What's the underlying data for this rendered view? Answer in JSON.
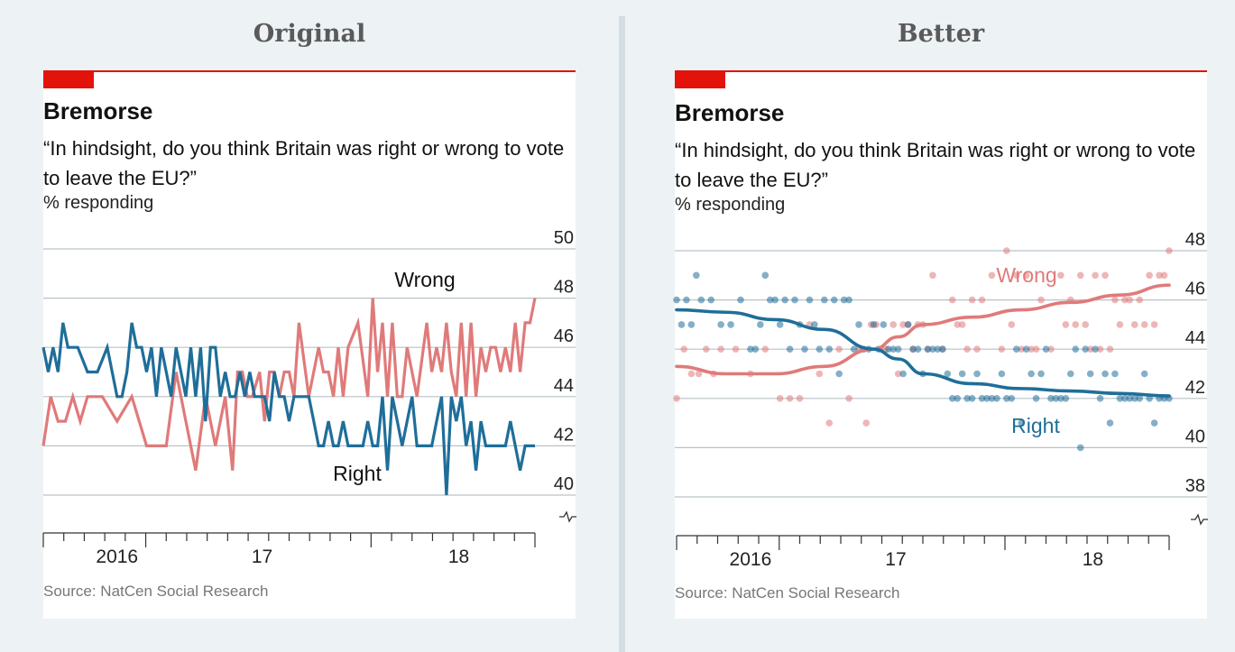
{
  "headings": {
    "left": "Original",
    "right": "Better"
  },
  "chart_data": [
    {
      "type": "line",
      "title": "Bremorse",
      "subtitle": "“In hindsight, do you think Britain was right or wrong to vote to leave the EU?”",
      "ylabel": "% responding",
      "ylim": [
        39,
        50
      ],
      "yticks": [
        40,
        42,
        44,
        46,
        48,
        50
      ],
      "y_axis_break": true,
      "x_range": [
        0,
        100
      ],
      "x_ticks": [
        {
          "label": "2016",
          "x": 15
        },
        {
          "label": "17",
          "x": 44.5
        },
        {
          "label": "18",
          "x": 84.5
        }
      ],
      "series": [
        {
          "name": "Wrong",
          "color": "#e07a7a",
          "x": [
            0,
            1.5,
            3,
            4.5,
            6,
            7.5,
            9,
            12,
            15,
            18,
            21,
            23,
            25,
            27,
            29,
            31,
            33,
            35,
            37,
            38.5,
            39.5,
            40.5,
            41.5,
            42.5,
            44,
            45,
            46,
            47,
            48,
            49,
            50,
            51,
            52,
            54,
            56,
            57,
            58,
            59,
            60,
            61,
            62,
            64,
            66,
            67,
            68,
            69,
            70,
            71,
            72,
            73,
            74,
            76,
            78,
            79,
            80,
            81,
            82,
            83,
            84,
            85,
            86,
            87,
            88,
            89,
            90,
            91,
            92,
            93,
            94,
            95,
            96,
            97,
            98,
            99,
            100
          ],
          "y": [
            42,
            44,
            43,
            43,
            44,
            43,
            44,
            44,
            43,
            44,
            42,
            42,
            42,
            45,
            43,
            41,
            44,
            42,
            44,
            41,
            45,
            45,
            44,
            44,
            45,
            43,
            45,
            45,
            44,
            45,
            45,
            44,
            47,
            44,
            46,
            45,
            45,
            44,
            46,
            44,
            46,
            47,
            44,
            48,
            45,
            47,
            44,
            47,
            44,
            44,
            46,
            44,
            47,
            45,
            46,
            45,
            47,
            45,
            44,
            47,
            44,
            47,
            44,
            46,
            45,
            46,
            46,
            45,
            46,
            45,
            47,
            45,
            47,
            47,
            48
          ]
        },
        {
          "name": "Right",
          "color": "#1f6e99",
          "x": [
            0,
            1,
            2,
            3,
            4,
            5,
            7,
            9,
            11,
            13,
            15,
            16,
            17,
            18,
            19,
            20,
            21,
            22,
            23,
            24,
            25,
            26,
            27,
            28,
            29,
            30,
            31,
            32,
            33,
            34,
            35,
            36,
            37,
            38,
            39,
            40,
            41,
            42,
            43,
            44,
            45,
            46,
            47,
            48,
            49,
            50,
            51,
            52,
            53,
            54,
            55,
            56,
            57,
            58,
            59,
            60,
            61,
            62,
            63,
            64,
            65,
            66,
            67,
            68,
            69,
            70,
            71,
            72,
            73,
            74,
            75,
            76,
            77,
            78,
            79,
            80,
            81,
            82,
            83,
            84,
            85,
            86,
            87,
            88,
            89,
            90,
            91,
            92,
            93,
            94,
            95,
            96,
            97,
            98,
            99,
            100
          ],
          "y": [
            46,
            45,
            46,
            45,
            47,
            46,
            46,
            45,
            45,
            46,
            44,
            44,
            45,
            47,
            46,
            46,
            45,
            46,
            44,
            46,
            45,
            44,
            46,
            45,
            44,
            46,
            44,
            46,
            43,
            46,
            46,
            44,
            45,
            44,
            44,
            45,
            44,
            45,
            44,
            44,
            44,
            43,
            45,
            44,
            44,
            43,
            44,
            44,
            44,
            44,
            43,
            42,
            42,
            43,
            42,
            42,
            43,
            42,
            42,
            42,
            42,
            43,
            42,
            42,
            44,
            41,
            44,
            43,
            42,
            43,
            44,
            42,
            42,
            42,
            42,
            43,
            44,
            40,
            44,
            43,
            44,
            42,
            43,
            41,
            43,
            42,
            42,
            42,
            42,
            42,
            43,
            42,
            41,
            42,
            42,
            42
          ]
        }
      ],
      "annotations": [
        "Wrong",
        "Right"
      ],
      "source": "Source: NatCen Social Research"
    },
    {
      "type": "scatter",
      "title": "Bremorse",
      "subtitle": "“In hindsight, do you think Britain was right or wrong to vote to leave the EU?”",
      "ylabel": "% responding",
      "ylim": [
        37,
        48
      ],
      "yticks": [
        38,
        40,
        42,
        44,
        46,
        48
      ],
      "y_axis_break": true,
      "x_range": [
        0,
        100
      ],
      "x_ticks": [
        {
          "label": "2016",
          "x": 15
        },
        {
          "label": "17",
          "x": 44.5
        },
        {
          "label": "18",
          "x": 84.5
        }
      ],
      "series": [
        {
          "name": "Wrong",
          "color": "#e07a7a",
          "opacity": 0.55,
          "x": [
            0,
            1.5,
            3,
            4.5,
            6,
            7.5,
            9,
            12,
            15,
            18,
            21,
            23,
            25,
            27,
            29,
            31,
            33,
            35,
            37,
            38.5,
            39.5,
            40.5,
            41.5,
            42.5,
            44,
            45,
            46,
            47,
            48,
            49,
            50,
            51,
            52,
            54,
            56,
            57,
            58,
            59,
            60,
            61,
            62,
            64,
            66,
            67,
            68,
            69,
            70,
            71,
            72,
            73,
            74,
            76,
            78,
            79,
            80,
            81,
            82,
            83,
            84,
            85,
            86,
            87,
            88,
            89,
            90,
            91,
            92,
            93,
            94,
            95,
            96,
            97,
            98,
            99,
            100
          ],
          "y": [
            42,
            44,
            43,
            43,
            44,
            43,
            44,
            44,
            43,
            44,
            42,
            42,
            42,
            45,
            43,
            41,
            44,
            42,
            44,
            41,
            45,
            45,
            44,
            44,
            45,
            43,
            45,
            45,
            44,
            45,
            45,
            44,
            47,
            44,
            46,
            45,
            45,
            44,
            46,
            44,
            46,
            47,
            44,
            48,
            45,
            47,
            44,
            47,
            44,
            44,
            46,
            44,
            47,
            45,
            46,
            45,
            47,
            45,
            44,
            47,
            44,
            47,
            44,
            46,
            45,
            46,
            46,
            45,
            46,
            45,
            47,
            45,
            47,
            47,
            48
          ],
          "trend_x": [
            0,
            10,
            20,
            30,
            40,
            45,
            50,
            60,
            70,
            80,
            90,
            100
          ],
          "trend_y": [
            43.3,
            43.0,
            43.0,
            43.3,
            44.0,
            44.5,
            45.0,
            45.3,
            45.6,
            45.9,
            46.2,
            46.6
          ]
        },
        {
          "name": "Right",
          "color": "#1f6e99",
          "opacity": 0.55,
          "x": [
            0,
            1,
            2,
            3,
            4,
            5,
            7,
            9,
            11,
            13,
            15,
            16,
            17,
            18,
            19,
            20,
            21,
            22,
            23,
            24,
            25,
            26,
            27,
            28,
            29,
            30,
            31,
            32,
            33,
            34,
            35,
            36,
            37,
            38,
            39,
            40,
            41,
            42,
            43,
            44,
            45,
            46,
            47,
            48,
            49,
            50,
            51,
            52,
            53,
            54,
            55,
            56,
            57,
            58,
            59,
            60,
            61,
            62,
            63,
            64,
            65,
            66,
            67,
            68,
            69,
            70,
            71,
            72,
            73,
            74,
            75,
            76,
            77,
            78,
            79,
            80,
            81,
            82,
            83,
            84,
            85,
            86,
            87,
            88,
            89,
            90,
            91,
            92,
            93,
            94,
            95,
            96,
            97,
            98,
            99,
            100
          ],
          "y": [
            46,
            45,
            46,
            45,
            47,
            46,
            46,
            45,
            45,
            46,
            44,
            44,
            45,
            47,
            46,
            46,
            45,
            46,
            44,
            46,
            45,
            44,
            46,
            45,
            44,
            46,
            44,
            46,
            43,
            46,
            46,
            44,
            45,
            44,
            44,
            45,
            44,
            45,
            44,
            44,
            44,
            43,
            45,
            44,
            44,
            43,
            44,
            44,
            44,
            44,
            43,
            42,
            42,
            43,
            42,
            42,
            43,
            42,
            42,
            42,
            42,
            43,
            42,
            42,
            44,
            41,
            44,
            43,
            42,
            43,
            44,
            42,
            42,
            42,
            42,
            43,
            44,
            40,
            44,
            43,
            44,
            42,
            43,
            41,
            43,
            42,
            42,
            42,
            42,
            42,
            43,
            42,
            41,
            42,
            42,
            42
          ],
          "trend_x": [
            0,
            10,
            20,
            30,
            40,
            45,
            50,
            60,
            70,
            80,
            90,
            100
          ],
          "trend_y": [
            45.6,
            45.5,
            45.2,
            44.8,
            44.0,
            43.6,
            43.0,
            42.6,
            42.4,
            42.3,
            42.2,
            42.1
          ]
        }
      ],
      "annotations": [
        "Wrong",
        "Right"
      ],
      "source": "Source: NatCen Social Research"
    }
  ]
}
